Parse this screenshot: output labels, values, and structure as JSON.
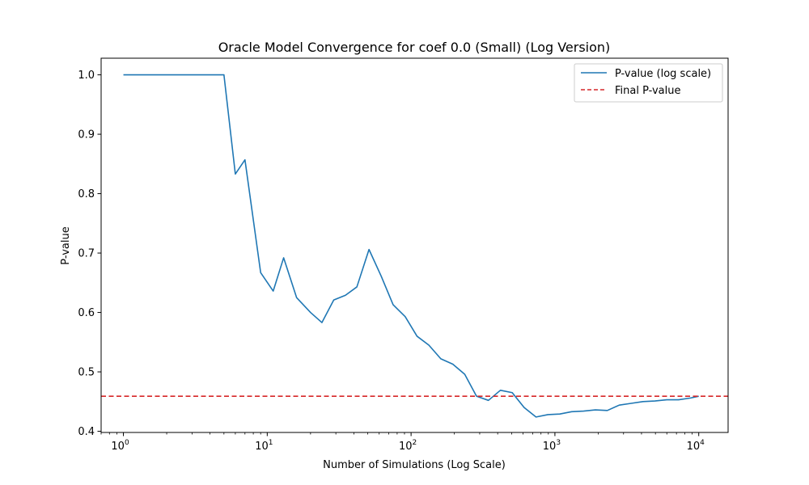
{
  "chart_data": {
    "type": "line",
    "title": "Oracle Model Convergence for coef 0.0 (Small) (Log Version)",
    "xlabel": "Number of Simulations (Log Scale)",
    "ylabel": "P-value",
    "x_scale": "log",
    "xlim": [
      0.7,
      16000
    ],
    "ylim": [
      0.398,
      1.028
    ],
    "x_ticks": [
      {
        "value": 1,
        "base": "10",
        "exp": "0"
      },
      {
        "value": 10,
        "base": "10",
        "exp": "1"
      },
      {
        "value": 100,
        "base": "10",
        "exp": "2"
      },
      {
        "value": 1000,
        "base": "10",
        "exp": "3"
      },
      {
        "value": 10000,
        "base": "10",
        "exp": "4"
      }
    ],
    "y_ticks": [
      "0.4",
      "0.5",
      "0.6",
      "0.7",
      "0.8",
      "0.9",
      "1.0"
    ],
    "grid": false,
    "legend_position": "top-right",
    "series": [
      {
        "name": "P-value (log scale)",
        "color": "#1f77b4",
        "style": "solid",
        "x": [
          1,
          5,
          6,
          7,
          9,
          11,
          13,
          16,
          20,
          24,
          29,
          35,
          42,
          51,
          62,
          75,
          91,
          110,
          133,
          161,
          195,
          236,
          285,
          345,
          418,
          505,
          611,
          739,
          894,
          1081,
          1308,
          1582,
          1913,
          2314,
          2799,
          3385,
          4095,
          4953,
          5991,
          7247,
          8766,
          10000
        ],
        "y": [
          1.0,
          1.0,
          0.833,
          0.857,
          0.667,
          0.636,
          0.692,
          0.625,
          0.6,
          0.583,
          0.621,
          0.629,
          0.643,
          0.706,
          0.661,
          0.613,
          0.593,
          0.56,
          0.545,
          0.522,
          0.513,
          0.496,
          0.459,
          0.452,
          0.469,
          0.465,
          0.44,
          0.424,
          0.428,
          0.429,
          0.433,
          0.434,
          0.436,
          0.435,
          0.444,
          0.447,
          0.45,
          0.451,
          0.453,
          0.453,
          0.456,
          0.459
        ]
      },
      {
        "name": "Final P-value",
        "color": "#d62728",
        "style": "dashed",
        "y_constant": 0.459
      }
    ]
  }
}
